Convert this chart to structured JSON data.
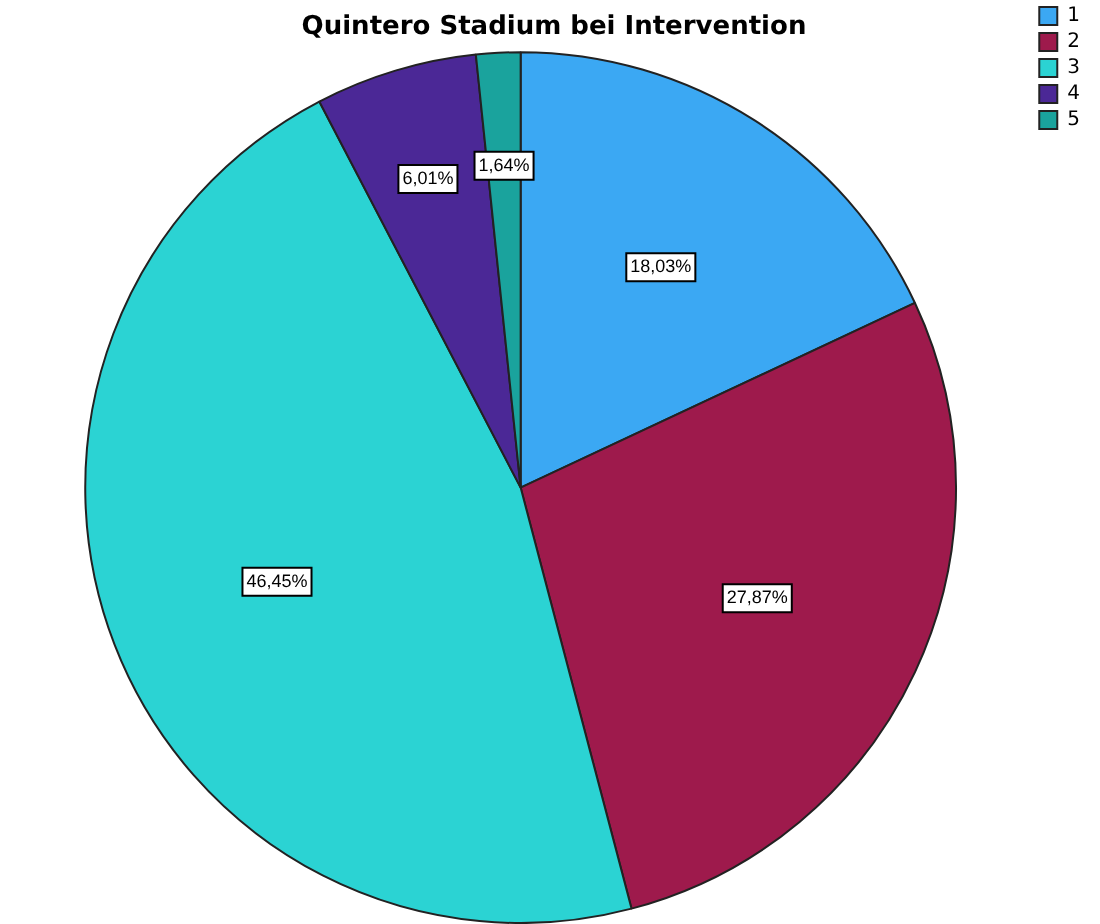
{
  "chart_data": {
    "type": "pie",
    "title": "Quintero Stadium bei Intervention",
    "categories": [
      "1",
      "2",
      "3",
      "4",
      "5"
    ],
    "values": [
      18.03,
      27.87,
      46.45,
      6.01,
      1.64
    ],
    "value_labels": [
      "18,03%",
      "27,87%",
      "46,45%",
      "6,01%",
      "1,64%"
    ],
    "colors": [
      "#3ba8f3",
      "#9e1a4c",
      "#2bd3d3",
      "#4b2896",
      "#1aa39d"
    ],
    "legend": "top right"
  }
}
